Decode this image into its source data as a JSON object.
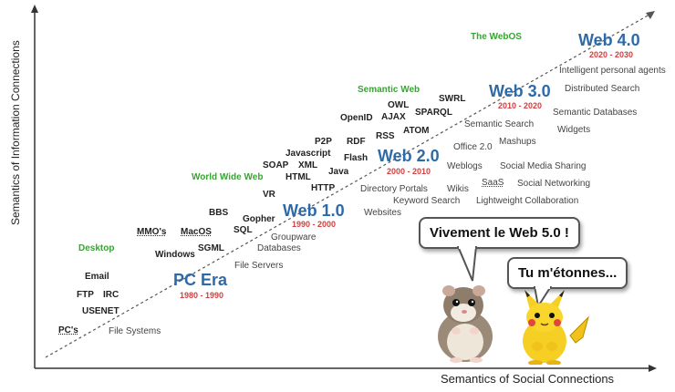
{
  "axes": {
    "y_label": "Semantics of Information Connections",
    "x_label": "Semantics of Social Connections"
  },
  "eras": [
    {
      "name": "PC Era",
      "years": "1980 - 1990"
    },
    {
      "name": "Web 1.0",
      "years": "1990 - 2000"
    },
    {
      "name": "Web 2.0",
      "years": "2000 - 2010"
    },
    {
      "name": "Web 3.0",
      "years": "2010 - 2020"
    },
    {
      "name": "Web 4.0",
      "years": "2020 - 2030"
    }
  ],
  "categories": {
    "desktop": "Desktop",
    "www": "World Wide Web",
    "semantic_web": "Semantic Web",
    "webos": "The WebOS"
  },
  "terms": {
    "pcs": "PC's",
    "file_systems": "File Systems",
    "usenet": "USENET",
    "ftp": "FTP",
    "irc": "IRC",
    "email": "Email",
    "file_servers": "File Servers",
    "windows": "Windows",
    "sgml": "SGML",
    "mmos": "MMO's",
    "macos": "MacOS",
    "databases": "Databases",
    "groupware": "Groupware",
    "bbs": "BBS",
    "sql": "SQL",
    "gopher": "Gopher",
    "vr": "VR",
    "html": "HTML",
    "http": "HTTP",
    "soap": "SOAP",
    "xml": "XML",
    "java": "Java",
    "javascript": "Javascript",
    "flash": "Flash",
    "p2p": "P2P",
    "rdf": "RDF",
    "rss": "RSS",
    "openid": "OpenID",
    "ajax": "AJAX",
    "owl": "OWL",
    "atom": "ATOM",
    "sparql": "SPARQL",
    "swrl": "SWRL",
    "websites": "Websites",
    "directory_portals": "Directory Portals",
    "keyword_search": "Keyword Search",
    "wikis": "Wikis",
    "weblogs": "Weblogs",
    "office20": "Office 2.0",
    "semantic_search": "Semantic Search",
    "mashups": "Mashups",
    "saas": "SaaS",
    "social_media_sharing": "Social Media Sharing",
    "social_networking": "Social Networking",
    "lightweight_collab": "Lightweight Collaboration",
    "intelligent_agents": "Intelligent personal agents",
    "distributed_search": "Distributed Search",
    "semantic_databases": "Semantic Databases",
    "widgets": "Widgets"
  },
  "bubbles": {
    "hamster": "Vivement le Web 5.0 !",
    "pikachu": "Tu m'étonnes..."
  },
  "colors": {
    "era": "#2f6aa8",
    "years": "#d04040",
    "category": "#3aa336"
  }
}
